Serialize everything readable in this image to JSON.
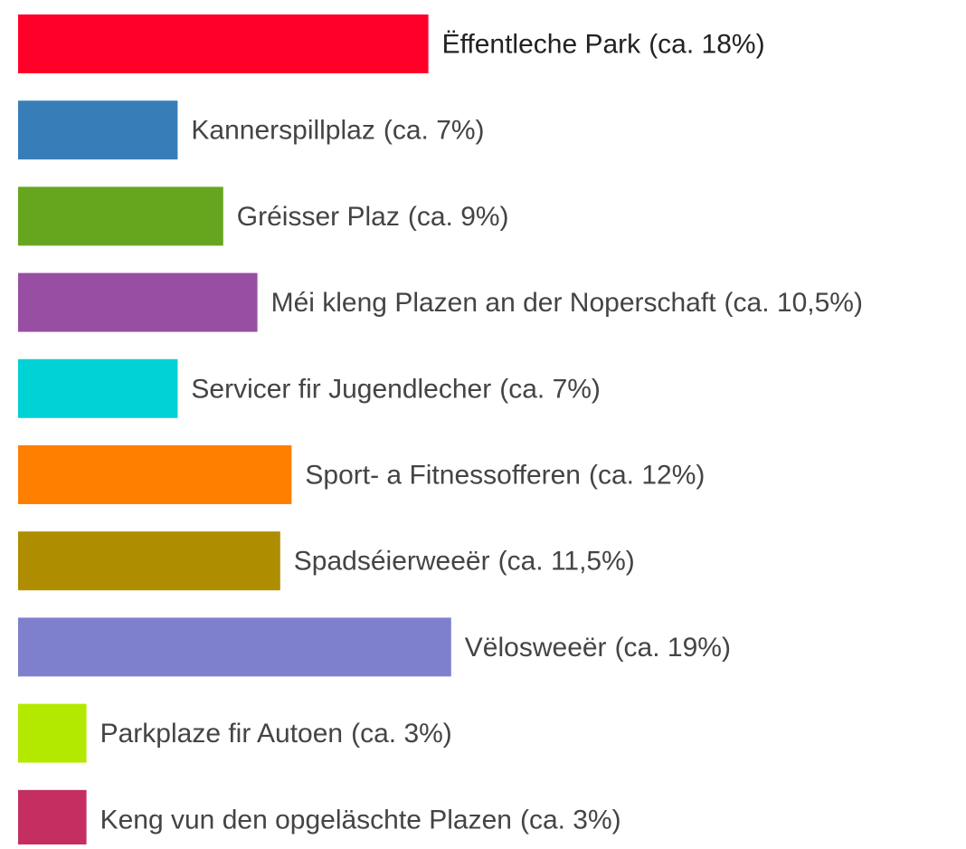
{
  "chart_data": {
    "type": "barh",
    "categories": [
      "Ëffentleche Park",
      "Kannerspillplaz",
      "Gréisser Plaz",
      "Méi kleng Plazen an der Noperschaft",
      "Servicer fir Jugendlecher",
      "Sport- a Fitnessofferen",
      "Spadséierweeër",
      "Vëlosweeër",
      "Parkplaze fir Autoen",
      "Keng vun den opgeläschte Plazen"
    ],
    "values": [
      18,
      7,
      9,
      10.5,
      7,
      12,
      11.5,
      19,
      3,
      3
    ],
    "value_labels": [
      "(ca. 18%)",
      "(ca. 7%)",
      "(ca. 9%)",
      "(ca. 10,5%)",
      "(ca. 7%)",
      "(ca. 12%)",
      "(ca. 11,5%)",
      "(ca. 19%)",
      "(ca. 3%)",
      "(ca. 3%)"
    ],
    "colors": [
      "#ff0029",
      "#377eb8",
      "#66a61e",
      "#984ea3",
      "#00d2d5",
      "#ff7f00",
      "#af8d00",
      "#7f80cd",
      "#b3e900",
      "#c42e60"
    ]
  }
}
